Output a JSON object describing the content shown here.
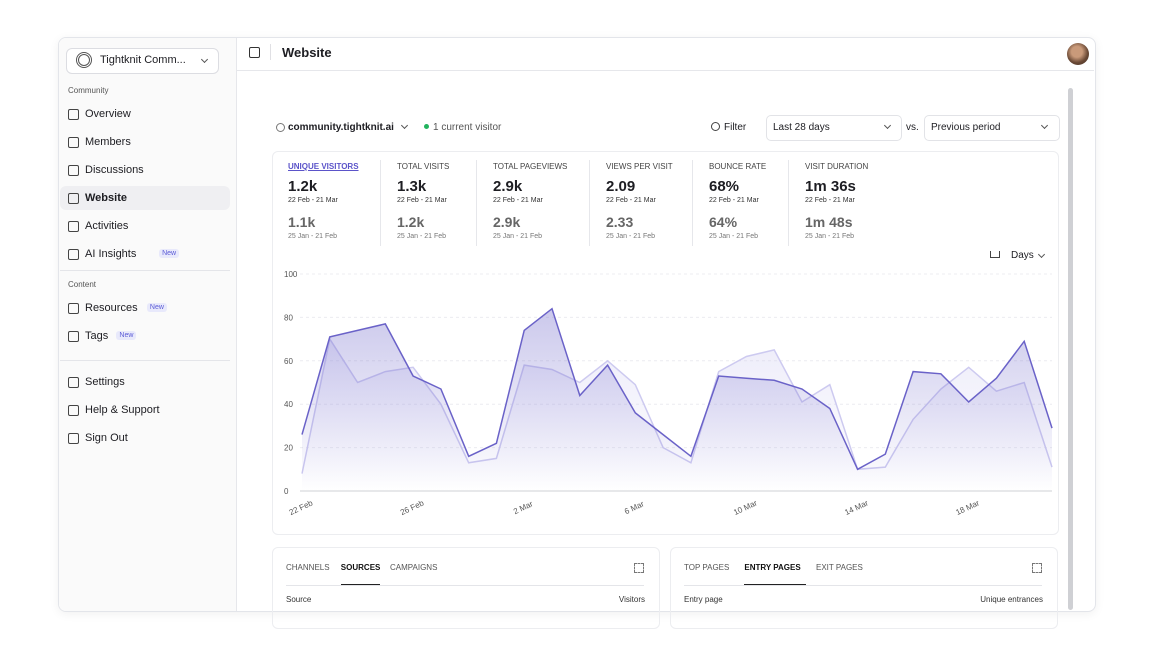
{
  "sidebar": {
    "workspace": "Tightknit Comm...",
    "active_item": "Website",
    "groups": [
      {
        "label": "Community",
        "items": [
          {
            "label": "Overview"
          },
          {
            "label": "Members"
          },
          {
            "label": "Discussions"
          },
          {
            "label": "Website"
          },
          {
            "label": "Activities"
          },
          {
            "label": "AI Insights",
            "badge": "New"
          }
        ]
      },
      {
        "label": "Content",
        "items": [
          {
            "label": "Resources",
            "badge": "New"
          },
          {
            "label": "Tags",
            "badge": "New"
          }
        ]
      }
    ],
    "footer": [
      {
        "label": "Settings"
      },
      {
        "label": "Help & Support"
      },
      {
        "label": "Sign Out"
      }
    ]
  },
  "header": {
    "title": "Website"
  },
  "toolbar": {
    "site": "community.tightknit.ai",
    "live": "1 current visitor",
    "filter": "Filter",
    "period": "Last 28 days",
    "vs": "vs.",
    "compare": "Previous period",
    "interval": "Days"
  },
  "stats_selected": 0,
  "stats": [
    {
      "label": "UNIQUE VISITORS",
      "current": "1.2k",
      "current_range": "22 Feb - 21 Mar",
      "previous": "1.1k",
      "previous_range": "25 Jan - 21 Feb"
    },
    {
      "label": "TOTAL VISITS",
      "current": "1.3k",
      "current_range": "22 Feb - 21 Mar",
      "previous": "1.2k",
      "previous_range": "25 Jan - 21 Feb"
    },
    {
      "label": "TOTAL PAGEVIEWS",
      "current": "2.9k",
      "current_range": "22 Feb - 21 Mar",
      "previous": "2.9k",
      "previous_range": "25 Jan - 21 Feb"
    },
    {
      "label": "VIEWS PER VISIT",
      "current": "2.09",
      "current_range": "22 Feb - 21 Mar",
      "previous": "2.33",
      "previous_range": "25 Jan - 21 Feb"
    },
    {
      "label": "BOUNCE RATE",
      "current": "68%",
      "current_range": "22 Feb - 21 Mar",
      "previous": "64%",
      "previous_range": "25 Jan - 21 Feb"
    },
    {
      "label": "VISIT DURATION",
      "current": "1m 36s",
      "current_range": "22 Feb - 21 Mar",
      "previous": "1m 48s",
      "previous_range": "25 Jan - 21 Feb"
    }
  ],
  "chart_data": {
    "type": "line",
    "categories": [
      "22 Feb",
      null,
      null,
      null,
      "26 Feb",
      null,
      null,
      null,
      "2 Mar",
      null,
      null,
      null,
      "6 Mar",
      null,
      null,
      null,
      "10 Mar",
      null,
      null,
      null,
      "14 Mar",
      null,
      null,
      null,
      "18 Mar",
      null,
      null,
      null
    ],
    "series": [
      {
        "color": "#cdcaf0",
        "values": [
          8,
          70,
          50,
          55,
          57,
          40,
          13,
          15,
          58,
          56,
          50,
          60,
          49,
          20,
          13,
          55,
          62,
          65,
          41,
          49,
          10,
          11,
          33,
          47,
          57,
          46,
          50,
          11
        ]
      },
      {
        "color": "#6a62c8",
        "values": [
          26,
          71,
          74,
          77,
          53,
          47,
          16,
          22,
          74,
          84,
          44,
          58,
          36,
          26,
          16,
          53,
          52,
          51,
          47,
          38,
          10,
          17,
          55,
          54,
          41,
          52,
          69,
          29
        ]
      }
    ],
    "ylim": [
      0,
      100
    ],
    "yticks": [
      0,
      20,
      40,
      60,
      80,
      100
    ],
    "grid": true
  },
  "panels": [
    {
      "tabs": [
        "CHANNELS",
        "SOURCES",
        "CAMPAIGNS"
      ],
      "active": 1,
      "columns": [
        "Source",
        "Visitors"
      ]
    },
    {
      "tabs": [
        "TOP PAGES",
        "ENTRY PAGES",
        "EXIT PAGES"
      ],
      "active": 1,
      "columns": [
        "Entry page",
        "Unique entrances"
      ]
    }
  ]
}
